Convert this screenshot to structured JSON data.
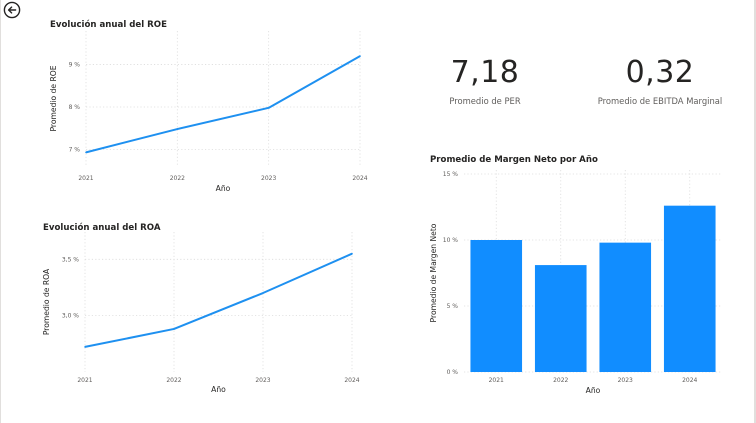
{
  "colors": {
    "accent": "#1e90f0",
    "bar": "#118dff",
    "text": "#252423",
    "muted": "#605e5c"
  },
  "nav": {
    "back_icon": "arrow-left-circle-icon"
  },
  "cards": [
    {
      "value": "7,18",
      "label": "Promedio de PER"
    },
    {
      "value": "0,32",
      "label": "Promedio de EBITDA Marginal"
    }
  ],
  "chart_data": [
    {
      "type": "line",
      "title": "Evolución anual del ROE",
      "xlabel": "Año",
      "ylabel": "Promedio de ROE",
      "x": [
        "2021",
        "2022",
        "2023",
        "2024"
      ],
      "values": [
        6.93,
        7.48,
        7.98,
        9.2
      ],
      "yticks": [
        7,
        8,
        9
      ],
      "ytick_labels": [
        "7 %",
        "8 %",
        "9 %"
      ],
      "ylim": [
        6.75,
        9.65
      ],
      "grid": true
    },
    {
      "type": "line",
      "title": "Evolución anual del ROA",
      "xlabel": "Año",
      "ylabel": "Promedio de ROA",
      "x": [
        "2021",
        "2022",
        "2023",
        "2024"
      ],
      "values": [
        2.72,
        2.88,
        3.2,
        3.55
      ],
      "yticks": [
        3.0,
        3.5
      ],
      "ytick_labels": [
        "3,0 %",
        "3,5 %"
      ],
      "ylim": [
        2.55,
        3.69
      ],
      "grid": true
    },
    {
      "type": "bar",
      "title": "Promedio de Margen Neto por Año",
      "xlabel": "Año",
      "ylabel": "Promedio de Margen Neto",
      "categories": [
        "2021",
        "2022",
        "2023",
        "2024"
      ],
      "values": [
        10.0,
        8.1,
        9.8,
        12.6
      ],
      "yticks": [
        0,
        5,
        10,
        15
      ],
      "ytick_labels": [
        "0 %",
        "5 %",
        "10 %",
        "15 %"
      ],
      "ylim": [
        0,
        15
      ],
      "grid": true
    }
  ]
}
